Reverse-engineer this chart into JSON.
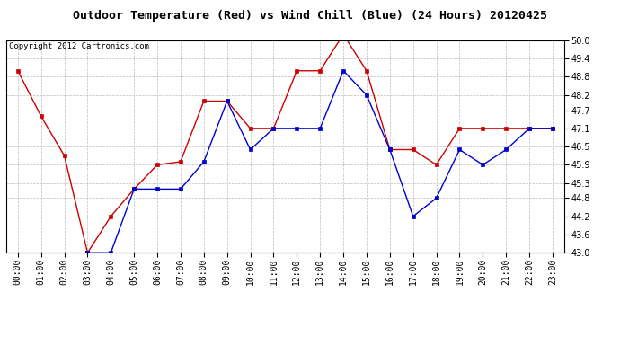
{
  "title": "Outdoor Temperature (Red) vs Wind Chill (Blue) (24 Hours) 20120425",
  "copyright_text": "Copyright 2012 Cartronics.com",
  "hours": [
    0,
    1,
    2,
    3,
    4,
    5,
    6,
    7,
    8,
    9,
    10,
    11,
    12,
    13,
    14,
    15,
    16,
    17,
    18,
    19,
    20,
    21,
    22,
    23
  ],
  "hour_labels": [
    "00:00",
    "01:00",
    "02:00",
    "03:00",
    "04:00",
    "05:00",
    "06:00",
    "07:00",
    "08:00",
    "09:00",
    "10:00",
    "11:00",
    "12:00",
    "13:00",
    "14:00",
    "15:00",
    "16:00",
    "17:00",
    "18:00",
    "19:00",
    "20:00",
    "21:00",
    "22:00",
    "23:00"
  ],
  "red_data": [
    49.0,
    47.5,
    46.2,
    43.0,
    44.2,
    45.1,
    45.9,
    46.0,
    48.0,
    48.0,
    47.1,
    47.1,
    49.0,
    49.0,
    50.2,
    49.0,
    46.4,
    46.4,
    45.9,
    47.1,
    47.1,
    47.1,
    47.1,
    47.1
  ],
  "blue_data": [
    null,
    null,
    null,
    43.0,
    43.0,
    45.1,
    45.1,
    45.1,
    46.0,
    48.0,
    46.4,
    47.1,
    47.1,
    47.1,
    49.0,
    48.2,
    46.4,
    44.2,
    44.8,
    46.4,
    45.9,
    46.4,
    47.1,
    47.1
  ],
  "ylim": [
    43.0,
    50.0
  ],
  "yticks": [
    43.0,
    43.6,
    44.2,
    44.8,
    45.3,
    45.9,
    46.5,
    47.1,
    47.7,
    48.2,
    48.8,
    49.4,
    50.0
  ],
  "red_color": "#cc0000",
  "blue_color": "#0000cc",
  "bg_color": "#ffffff",
  "grid_color": "#bbbbbb",
  "title_fontsize": 9.5,
  "copyright_fontsize": 6.5,
  "tick_fontsize": 7
}
